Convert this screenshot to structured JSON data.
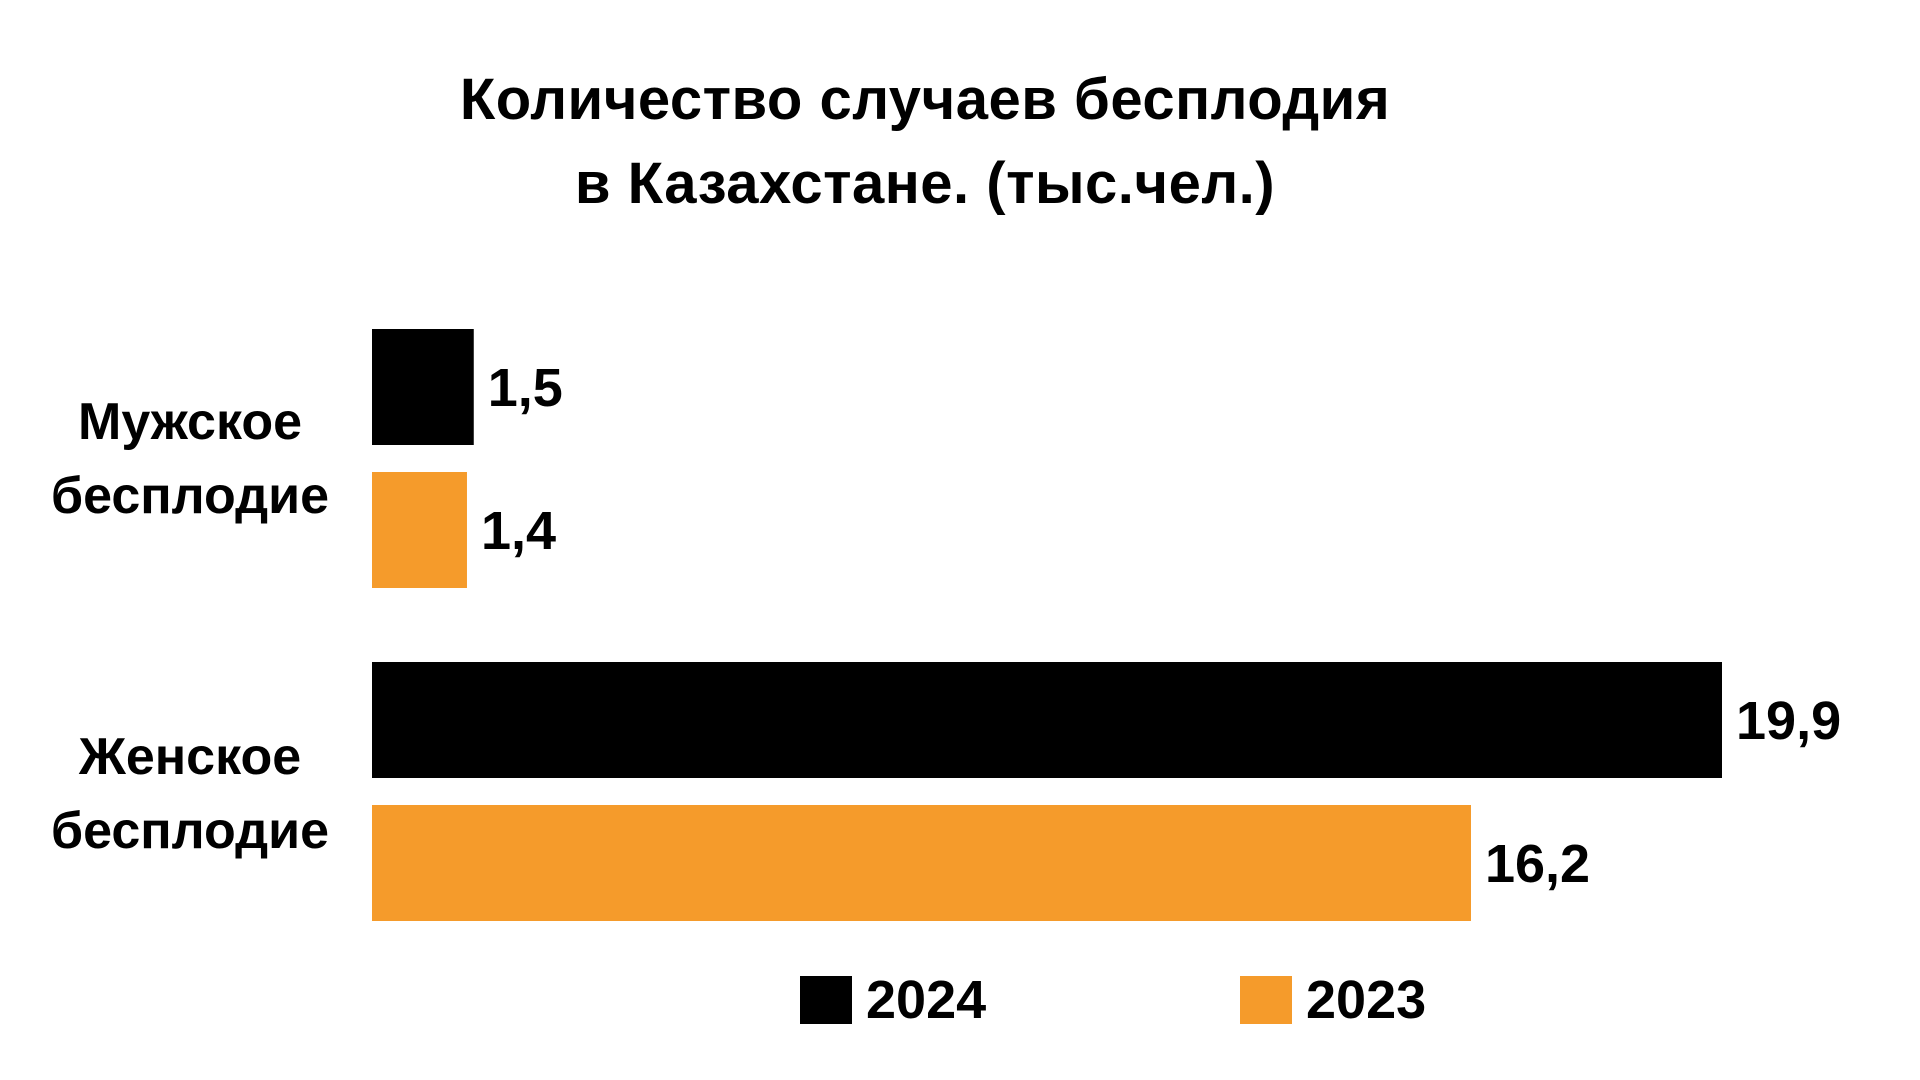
{
  "chart_data": {
    "type": "bar",
    "orientation": "horizontal",
    "title_lines": [
      "Количество случаев бесплодия",
      "в Казахстане. (тыс.чел.)"
    ],
    "categories": [
      [
        "Мужское",
        "бесплодие"
      ],
      [
        "Женское",
        "бесплодие"
      ]
    ],
    "series": [
      {
        "name": "2024",
        "color": "#000000",
        "values": [
          1.5,
          19.9
        ],
        "labels": [
          "1,5",
          "19,9"
        ]
      },
      {
        "name": "2023",
        "color": "#F59B2B",
        "values": [
          1.4,
          16.2
        ],
        "labels": [
          "1,4",
          "16,2"
        ]
      }
    ],
    "xlim": [
      0,
      19.9
    ],
    "grid": false,
    "legend_position": "bottom",
    "axes_visible": false
  }
}
